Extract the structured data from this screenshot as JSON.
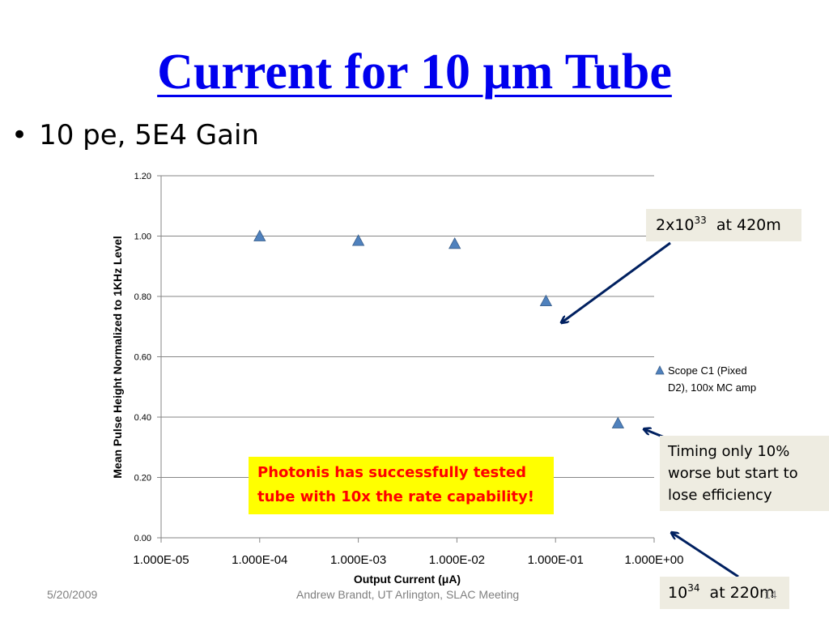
{
  "slide": {
    "title": "Current for 10 μm Tube",
    "bullet": "10 pe,  5E4 Gain",
    "callout_top": {
      "base": "2x10",
      "exp": "33",
      "rest": "  at 420m"
    },
    "callout_mid": "Timing only 10% worse but start to lose efficiency",
    "callout_bottom": {
      "base": "10",
      "exp": "34",
      "rest": "  at 220m"
    },
    "highlight_box": "Photonis  has successfully tested tube with 10x the rate capability!",
    "footer_date": "5/20/2009",
    "footer_center": "Andrew Brandt, UT Arlington,  SLAC Meeting",
    "footer_page": "14"
  },
  "colors": {
    "title": "#0000ee",
    "marker": "#4f81bd",
    "arrow": "#002060",
    "callout_bg": "#eeece1",
    "highlight_bg": "#ffff00",
    "highlight_text": "#ff0000"
  },
  "chart_data": {
    "type": "scatter",
    "xscale": "log",
    "xlabel": "Output Current (μA)",
    "ylabel": "Mean Pulse Height Normalized to 1KHz Level",
    "xlim": [
      1e-05,
      1
    ],
    "ylim": [
      0,
      1.2
    ],
    "x_ticks": [
      "1.000E-05",
      "1.000E-04",
      "1.000E-03",
      "1.000E-02",
      "1.000E-01",
      "1.000E+00"
    ],
    "y_ticks": [
      "0.00",
      "0.20",
      "0.40",
      "0.60",
      "0.80",
      "1.00",
      "1.20"
    ],
    "grid": true,
    "legend_position": "right",
    "series": [
      {
        "name": "Scope C1 (Pixed D2), 100x MC amp",
        "marker": "triangle",
        "x": [
          0.0001,
          0.001,
          0.0095,
          0.08,
          0.43
        ],
        "y": [
          1.0,
          0.985,
          0.975,
          0.785,
          0.38
        ]
      }
    ]
  }
}
